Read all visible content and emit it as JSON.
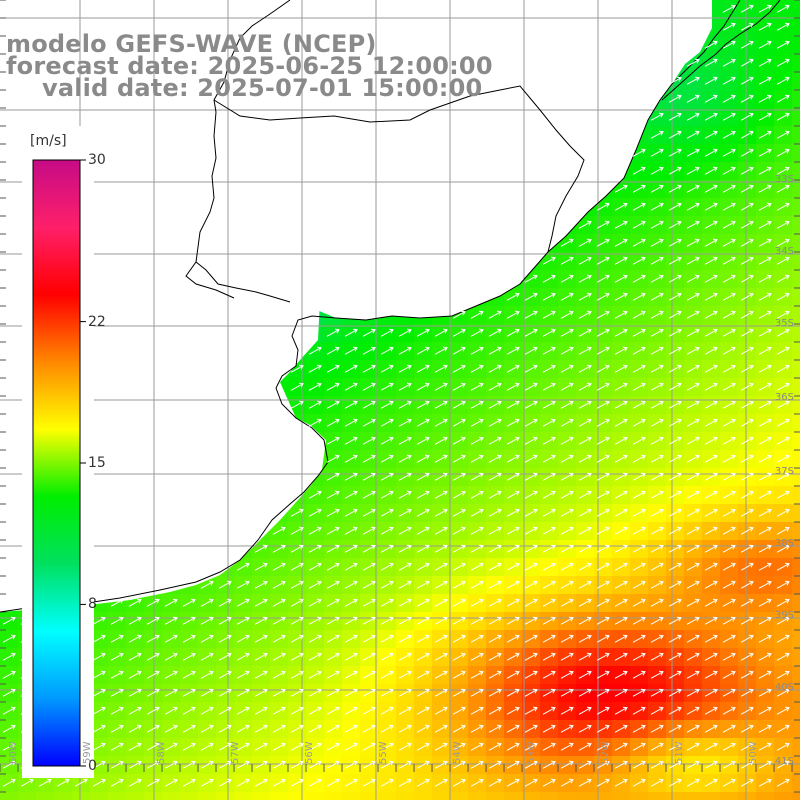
{
  "header": {
    "line1": "modelo GEFS-WAVE (NCEP)",
    "line2": "forecast date: 2025-06-25 12:00:00",
    "line3": "valid date: 2025-07-01 15:00:00"
  },
  "colorbar": {
    "unit": "[m/s]",
    "ticks": [
      "30",
      "22",
      "15",
      "8",
      "0"
    ],
    "tick_values": [
      30,
      22,
      15,
      8,
      0
    ],
    "min": 0,
    "max": 30,
    "colors": [
      "#0000ff",
      "#0099ff",
      "#00ffff",
      "#00e060",
      "#00ee00",
      "#ffff00",
      "#ff8800",
      "#ff0000",
      "#ff1f6a",
      "#c60b86"
    ]
  },
  "latitude_labels": [
    "33S",
    "34S",
    "35S",
    "36S",
    "37S",
    "38S",
    "39S",
    "40S",
    "41S"
  ],
  "longitude_labels": [
    "60W",
    "59W",
    "58W",
    "57W",
    "56W",
    "55W",
    "54W",
    "53W",
    "52W",
    "51W",
    "50W"
  ],
  "field": {
    "variable": "wind speed",
    "arrow_direction": "northeast",
    "land_color": "#ffffff",
    "grid_color": "#9a9a9a"
  }
}
